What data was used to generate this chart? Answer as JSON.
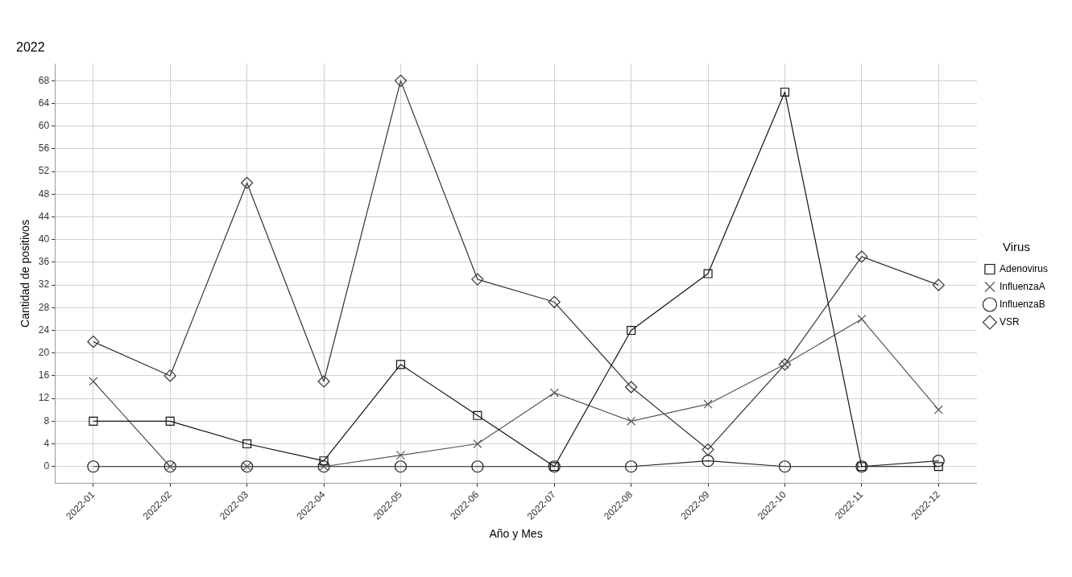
{
  "chart_data": {
    "type": "line",
    "title": "2022",
    "xlabel": "Año y Mes",
    "ylabel": "Cantidad de positivos",
    "legend_title": "Virus",
    "legend": "right",
    "grid": true,
    "line_style": "solid",
    "categories": [
      "2022-01",
      "2022-02",
      "2022-03",
      "2022-04",
      "2022-05",
      "2022-06",
      "2022-07",
      "2022-08",
      "2022-09",
      "2022-10",
      "2022-11",
      "2022-12"
    ],
    "ylim": [
      -3,
      71
    ],
    "yticks": [
      0,
      4,
      8,
      12,
      16,
      20,
      24,
      28,
      32,
      36,
      40,
      44,
      48,
      52,
      56,
      60,
      64,
      68
    ],
    "series": [
      {
        "name": "Adenovirus",
        "color": "#111111",
        "marker": "square",
        "values": [
          8,
          8,
          4,
          1,
          18,
          9,
          0,
          24,
          34,
          66,
          0,
          0
        ]
      },
      {
        "name": "InfluenzaA",
        "color": "#555555",
        "marker": "cross",
        "values": [
          15,
          0,
          0,
          0,
          2,
          4,
          13,
          8,
          11,
          18,
          26,
          10
        ]
      },
      {
        "name": "InfluenzaB",
        "color": "#222222",
        "marker": "circle",
        "values": [
          0,
          0,
          0,
          0,
          0,
          0,
          0,
          0,
          1,
          0,
          0,
          1
        ]
      },
      {
        "name": "VSR",
        "color": "#333333",
        "marker": "diamond",
        "values": [
          22,
          16,
          50,
          15,
          68,
          33,
          29,
          14,
          3,
          18,
          37,
          32
        ]
      }
    ]
  }
}
